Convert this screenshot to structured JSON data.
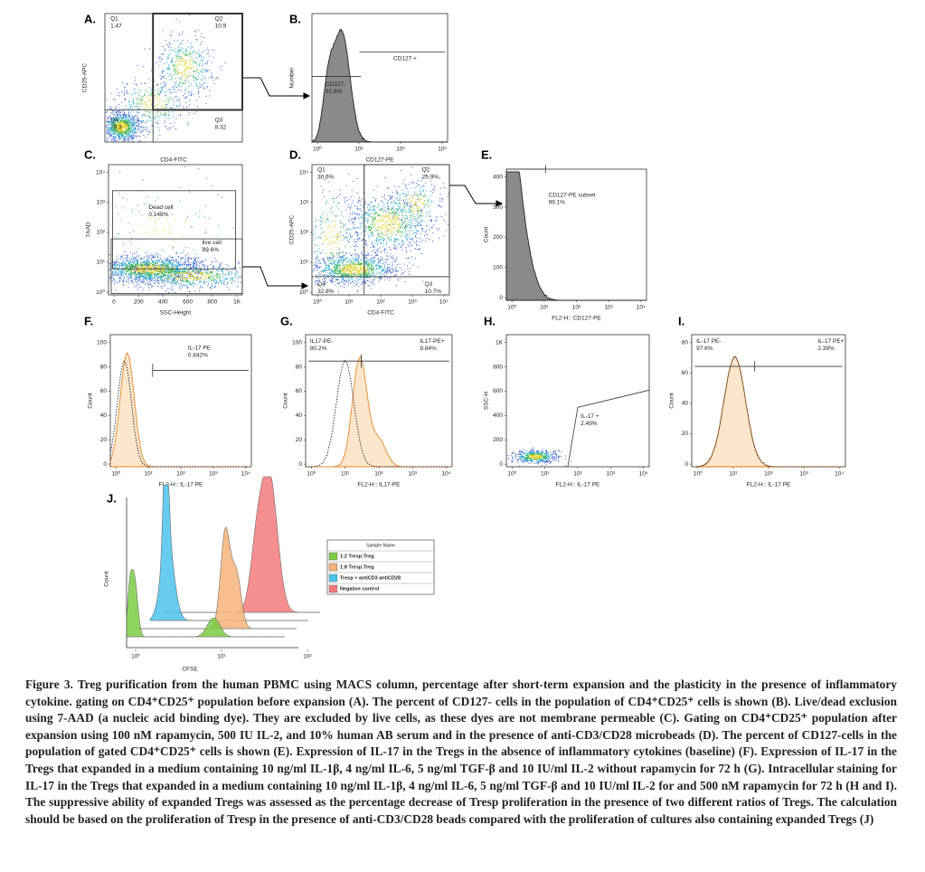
{
  "panels": [
    {
      "letter": "A.",
      "x_label": "CD4-FITC",
      "y_label": "CD25-APC",
      "gates": [
        [
          "Q1",
          "1.47"
        ],
        [
          "Q2",
          "10.9"
        ],
        [
          "Q4",
          "79.3"
        ],
        [
          "Q3",
          "8.32"
        ]
      ]
    },
    {
      "letter": "B.",
      "x_label": "CD127-PE",
      "y_label": "Number",
      "gates": [
        [
          "CD127 +"
        ],
        [
          "CD127-",
          "91.6%"
        ]
      ],
      "x_ticks": [
        "10⁰",
        "10¹",
        "10²",
        "10³"
      ]
    },
    {
      "letter": "C.",
      "x_label": "SSC-Height",
      "y_label": "7AAD",
      "gates": [
        [
          "Dead cell",
          "0.148%"
        ],
        [
          "live cell",
          "89.6%"
        ]
      ],
      "x_ticks": [
        "0",
        "200",
        "400",
        "600",
        "800",
        "1K"
      ],
      "y_ticks": [
        "10⁰",
        "10¹",
        "10²",
        "10³",
        "10⁴"
      ]
    },
    {
      "letter": "D.",
      "x_label": "CD4-FITC",
      "y_label": "CD25-APC",
      "gates": [
        [
          "Q1",
          "30.6%"
        ],
        [
          "Q2",
          "25.9%"
        ],
        [
          "Q4",
          "32.8%"
        ],
        [
          "Q3",
          "10.7%"
        ]
      ],
      "x_ticks": [
        "10⁰",
        "10¹",
        "10²",
        "10³",
        "10⁴"
      ],
      "y_ticks": [
        "10⁰",
        "10¹",
        "10²",
        "10³",
        "10⁴"
      ]
    },
    {
      "letter": "E.",
      "x_label": "FL2-H:: CD127-PE",
      "y_label": "Count",
      "gates": [
        [
          "CD127-PE subset",
          "99.1%"
        ]
      ],
      "x_ticks": [
        "10⁰",
        "10¹",
        "10²",
        "10³",
        "10⁴"
      ],
      "y_ticks": [
        "0",
        "100",
        "200",
        "300",
        "400"
      ]
    },
    {
      "letter": "F.",
      "x_label": "FL2-H:: IL-17 PE",
      "y_label": "Count",
      "gates": [
        [
          "IL-17 PE",
          "0.842%"
        ]
      ],
      "x_ticks": [
        "10⁰",
        "10¹",
        "10²",
        "10³",
        "10⁴"
      ],
      "y_ticks": [
        "0",
        "20",
        "40",
        "60",
        "80",
        "100"
      ]
    },
    {
      "letter": "G.",
      "x_label": "FL2-H:: IL17-PE",
      "y_label": "Count",
      "gates": [
        [
          "IL17-PE-",
          "90.2%"
        ],
        [
          "IL17-PE+",
          "9.84%"
        ]
      ],
      "x_ticks": [
        "10⁰",
        "10¹",
        "10²",
        "10³",
        "10⁴"
      ],
      "y_ticks": [
        "0",
        "20",
        "40",
        "60",
        "80",
        "100"
      ]
    },
    {
      "letter": "H.",
      "x_label": "FL2-H:: IL-17 PE",
      "y_label": "SSC-H",
      "gates": [
        [
          "IL-17 +",
          "2.49%"
        ]
      ],
      "x_ticks": [
        "10⁰",
        "10¹",
        "10²",
        "10³",
        "10⁴"
      ],
      "y_ticks": [
        "0",
        "200",
        "400",
        "600",
        "800",
        "1K"
      ]
    },
    {
      "letter": "I.",
      "x_label": "FL2-H:: IL-17 PE",
      "y_label": "Count",
      "gates": [
        [
          "IL-17 PE-",
          "97.6%"
        ],
        [
          "IL-17 PE+",
          "2.39%"
        ]
      ],
      "x_ticks": [
        "10⁰",
        "10¹",
        "10²",
        "10³",
        "10⁴"
      ],
      "y_ticks": [
        "0",
        "20",
        "40",
        "60",
        "80"
      ]
    },
    {
      "letter": "J.",
      "x_label": "CFSE",
      "y_label": "Count",
      "gates": [],
      "x_ticks": [
        "10⁰",
        "10¹",
        "10²"
      ]
    }
  ],
  "legend": {
    "title": "Sample Name",
    "entries": [
      {
        "name": "1:2  Tresp:Treg",
        "color": "#7dcc44"
      },
      {
        "name": "1:8  Tresp:Treg",
        "color": "#f6b37a"
      },
      {
        "name": "Tresp + antiCD3 antiCD28",
        "color": "#4cc3ec"
      },
      {
        "name": "Negative control",
        "color": "#f37b7b"
      }
    ]
  },
  "caption": "Figure 3. Treg purification from the human PBMC using MACS column, percentage after short-term expansion and the plasticity in the presence of inflammatory cytokine. gating on CD4⁺CD25⁺ population before expansion (A). The percent of CD127- cells in the population of CD4⁺CD25⁺ cells is shown (B). Live/dead exclusion using 7-AAD (a nucleic acid binding dye). They are excluded by live cells, as these dyes are not membrane permeable (C). Gating on CD4⁺CD25⁺ population after expansion using 100 nM rapamycin, 500 IU IL-2, and 10% human AB serum and in the presence of anti-CD3/CD28 microbeads (D). The percent of CD127-cells in the population of gated CD4⁺CD25⁺ cells is shown (E). Expression of IL-17 in the Tregs in the absence of inflammatory cytokines (baseline) (F). Expression of IL-17 in the Tregs that expanded in a medium containing 10 ng/ml IL-1β, 4 ng/ml IL-6, 5 ng/ml TGF-β and 10 IU/ml IL-2 without rapamycin for 72 h (G). Intracellular staining for IL-17 in the Tregs that expanded in a medium containing 10 ng/ml IL-1β, 4 ng/ml IL-6, 5 ng/ml TGF-β and 10 IU/ml IL-2 for and 500 nM rapamycin for 72 h (H and I). The suppressive ability of expanded Tregs was assessed as the percentage decrease of Tresp proliferation in the presence of two different ratios of Tregs. The calculation should be based on the proliferation of Tresp in the presence of anti-CD3/CD28 beads compared with the proliferation of cultures also containing expanded Tregs (J)"
}
